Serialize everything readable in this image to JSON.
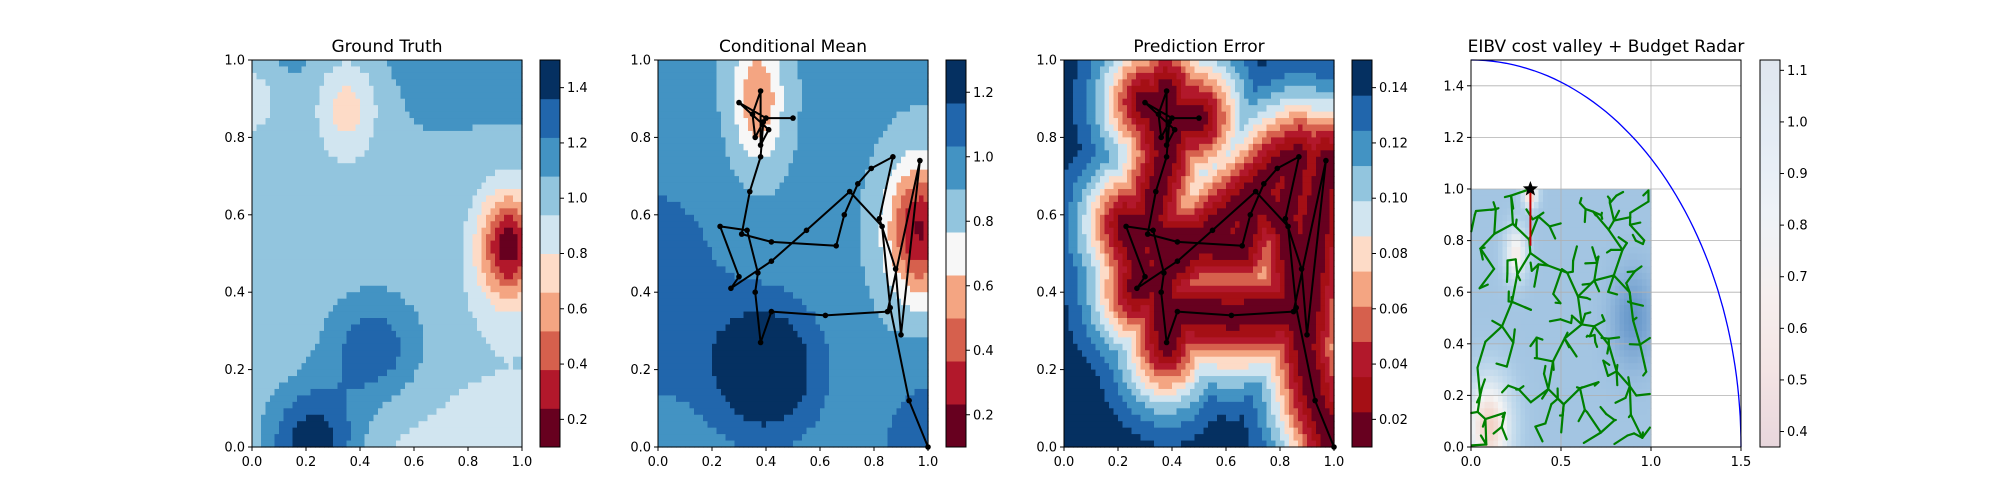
{
  "chart_data": [
    {
      "type": "heatmap",
      "title": "Ground Truth",
      "xlim": [
        0,
        1
      ],
      "ylim": [
        0,
        1
      ],
      "x_ticks": [
        "0.0",
        "0.2",
        "0.4",
        "0.6",
        "0.8",
        "1.0"
      ],
      "y_ticks": [
        "0.0",
        "0.2",
        "0.4",
        "0.6",
        "0.8",
        "1.0"
      ],
      "colorbar": {
        "min": 0.1,
        "max": 1.5,
        "ticks": [
          "0.2",
          "0.4",
          "0.6",
          "0.8",
          "1.0",
          "1.2",
          "1.4"
        ]
      },
      "colormap": "RdBu"
    },
    {
      "type": "heatmap",
      "title": "Conditional Mean",
      "xlim": [
        0,
        1
      ],
      "ylim": [
        0,
        1
      ],
      "x_ticks": [
        "0.0",
        "0.2",
        "0.4",
        "0.6",
        "0.8",
        "1.0"
      ],
      "y_ticks": [
        "0.0",
        "0.2",
        "0.4",
        "0.6",
        "0.8",
        "1.0"
      ],
      "colorbar": {
        "min": 0.1,
        "max": 1.3,
        "ticks": [
          "0.2",
          "0.4",
          "0.6",
          "0.8",
          "1.0",
          "1.2"
        ]
      },
      "colormap": "RdBu",
      "path": [
        [
          0.5,
          0.85
        ],
        [
          0.4,
          0.85
        ],
        [
          0.3,
          0.89
        ],
        [
          0.41,
          0.82
        ],
        [
          0.38,
          0.78
        ],
        [
          0.38,
          0.92
        ],
        [
          0.35,
          0.86
        ],
        [
          0.36,
          0.8
        ],
        [
          0.39,
          0.84
        ],
        [
          0.38,
          0.75
        ],
        [
          0.34,
          0.66
        ],
        [
          0.31,
          0.55
        ],
        [
          0.42,
          0.53
        ],
        [
          0.66,
          0.52
        ],
        [
          0.69,
          0.6
        ],
        [
          0.74,
          0.68
        ],
        [
          0.79,
          0.72
        ],
        [
          0.87,
          0.75
        ],
        [
          0.82,
          0.59
        ],
        [
          0.88,
          0.46
        ],
        [
          0.9,
          0.29
        ],
        [
          0.97,
          0.74
        ],
        [
          0.85,
          0.35
        ],
        [
          0.62,
          0.34
        ],
        [
          0.42,
          0.35
        ],
        [
          0.38,
          0.27
        ],
        [
          0.36,
          0.4
        ],
        [
          0.37,
          0.45
        ],
        [
          0.33,
          0.56
        ],
        [
          0.23,
          0.57
        ],
        [
          0.3,
          0.44
        ],
        [
          0.27,
          0.41
        ],
        [
          0.42,
          0.48
        ],
        [
          0.55,
          0.56
        ],
        [
          0.71,
          0.66
        ],
        [
          0.83,
          0.57
        ],
        [
          0.86,
          0.36
        ],
        [
          0.93,
          0.12
        ],
        [
          1.0,
          0.0
        ]
      ]
    },
    {
      "type": "heatmap",
      "title": "Prediction Error",
      "xlim": [
        0,
        1
      ],
      "ylim": [
        0,
        1
      ],
      "x_ticks": [
        "0.0",
        "0.2",
        "0.4",
        "0.6",
        "0.8",
        "1.0"
      ],
      "y_ticks": [
        "0.0",
        "0.2",
        "0.4",
        "0.6",
        "0.8",
        "1.0"
      ],
      "colorbar": {
        "min": 0.01,
        "max": 0.15,
        "ticks": [
          "0.02",
          "0.04",
          "0.06",
          "0.08",
          "0.10",
          "0.12",
          "0.14"
        ]
      },
      "colormap": "RdBu",
      "path": [
        [
          0.5,
          0.85
        ],
        [
          0.4,
          0.85
        ],
        [
          0.3,
          0.89
        ],
        [
          0.41,
          0.82
        ],
        [
          0.38,
          0.78
        ],
        [
          0.38,
          0.92
        ],
        [
          0.35,
          0.86
        ],
        [
          0.36,
          0.8
        ],
        [
          0.39,
          0.84
        ],
        [
          0.38,
          0.75
        ],
        [
          0.34,
          0.66
        ],
        [
          0.31,
          0.55
        ],
        [
          0.42,
          0.53
        ],
        [
          0.66,
          0.52
        ],
        [
          0.69,
          0.6
        ],
        [
          0.74,
          0.68
        ],
        [
          0.79,
          0.72
        ],
        [
          0.87,
          0.75
        ],
        [
          0.82,
          0.59
        ],
        [
          0.88,
          0.46
        ],
        [
          0.9,
          0.29
        ],
        [
          0.97,
          0.74
        ],
        [
          0.85,
          0.35
        ],
        [
          0.62,
          0.34
        ],
        [
          0.42,
          0.35
        ],
        [
          0.38,
          0.27
        ],
        [
          0.36,
          0.4
        ],
        [
          0.37,
          0.45
        ],
        [
          0.33,
          0.56
        ],
        [
          0.23,
          0.57
        ],
        [
          0.3,
          0.44
        ],
        [
          0.27,
          0.41
        ],
        [
          0.42,
          0.48
        ],
        [
          0.55,
          0.56
        ],
        [
          0.71,
          0.66
        ],
        [
          0.83,
          0.57
        ],
        [
          0.86,
          0.36
        ],
        [
          0.93,
          0.12
        ],
        [
          1.0,
          0.0
        ]
      ]
    },
    {
      "type": "heatmap",
      "title": "EIBV cost valley + Budget Radar",
      "xlim": [
        0,
        1.5
      ],
      "ylim": [
        0,
        1.5
      ],
      "x_ticks": [
        "0.0",
        "0.5",
        "1.0",
        "1.5"
      ],
      "y_ticks": [
        "0.0",
        "0.2",
        "0.4",
        "0.6",
        "0.8",
        "1.0",
        "1.2",
        "1.4"
      ],
      "grid": true,
      "colorbar": {
        "min": 0.37,
        "max": 1.12,
        "ticks": [
          "0.4",
          "0.5",
          "0.6",
          "0.7",
          "0.8",
          "0.9",
          "1.0",
          "1.1"
        ]
      },
      "colormap": "RdBu",
      "current_location": [
        0.33,
        1.0
      ],
      "budget_radius": 1.5,
      "tree_color": "#008000",
      "radar_color": "#0000ff"
    }
  ]
}
